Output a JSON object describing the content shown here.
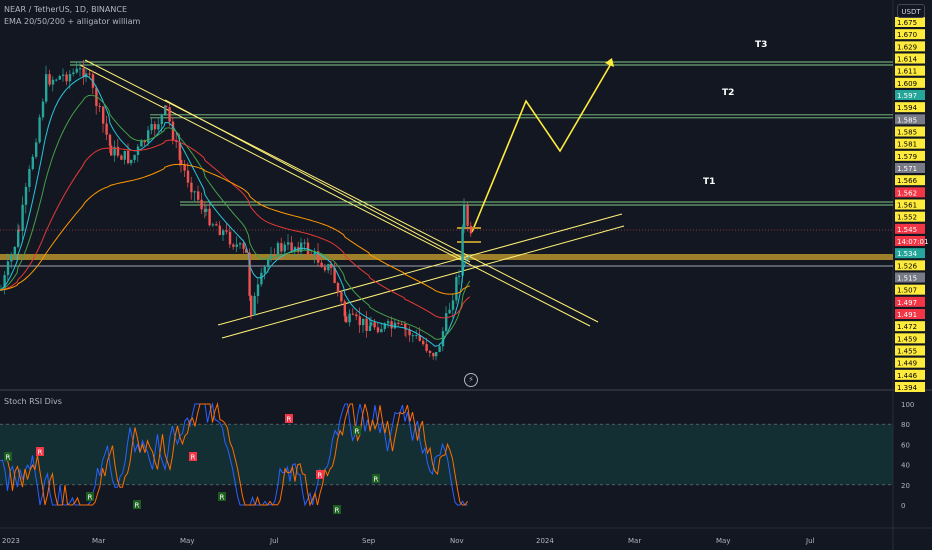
{
  "header": {
    "symbol_line": "NEAR / TetherUS, 1D, BINANCE",
    "indicator_line": "EMA 20/50/200 + alligator william",
    "currency": "USDT"
  },
  "price_axis": {
    "ticks": [
      {
        "label": "1.675",
        "bg": "#ffeb3b",
        "fg": "#000000"
      },
      {
        "label": "1.670",
        "bg": "#ffeb3b",
        "fg": "#000000"
      },
      {
        "label": "1.629",
        "bg": "#ffeb3b",
        "fg": "#000000"
      },
      {
        "label": "1.614",
        "bg": "#ffeb3b",
        "fg": "#000000"
      },
      {
        "label": "1.611",
        "bg": "#ffeb3b",
        "fg": "#000000"
      },
      {
        "label": "1.609",
        "bg": "#ffeb3b",
        "fg": "#000000"
      },
      {
        "label": "1.597",
        "bg": "#26a69a",
        "fg": "#ffffff"
      },
      {
        "label": "1.594",
        "bg": "#ffeb3b",
        "fg": "#000000"
      },
      {
        "label": "1.585",
        "bg": "#787b86",
        "fg": "#ffffff"
      },
      {
        "label": "1.585",
        "bg": "#ffeb3b",
        "fg": "#000000"
      },
      {
        "label": "1.581",
        "bg": "#ffeb3b",
        "fg": "#000000"
      },
      {
        "label": "1.579",
        "bg": "#ffeb3b",
        "fg": "#000000"
      },
      {
        "label": "1.571",
        "bg": "#787b86",
        "fg": "#ffffff"
      },
      {
        "label": "1.566",
        "bg": "#ffeb3b",
        "fg": "#000000"
      },
      {
        "label": "1.562",
        "bg": "#f23645",
        "fg": "#ffffff"
      },
      {
        "label": "1.561",
        "bg": "#ffeb3b",
        "fg": "#000000"
      },
      {
        "label": "1.552",
        "bg": "#ffeb3b",
        "fg": "#000000"
      },
      {
        "label": "1.545",
        "bg": "#f23645",
        "fg": "#ffffff"
      },
      {
        "label": "14:07:01",
        "bg": "#f23645",
        "fg": "#ffffff"
      },
      {
        "label": "1.534",
        "bg": "#26a69a",
        "fg": "#ffffff"
      },
      {
        "label": "1.526",
        "bg": "#ffeb3b",
        "fg": "#000000"
      },
      {
        "label": "1.515",
        "bg": "#787b86",
        "fg": "#ffffff"
      },
      {
        "label": "1.507",
        "bg": "#ffeb3b",
        "fg": "#000000"
      },
      {
        "label": "1.497",
        "bg": "#f23645",
        "fg": "#ffffff"
      },
      {
        "label": "1.491",
        "bg": "#f23645",
        "fg": "#ffffff"
      },
      {
        "label": "1.472",
        "bg": "#ffeb3b",
        "fg": "#000000"
      },
      {
        "label": "1.459",
        "bg": "#ffeb3b",
        "fg": "#000000"
      },
      {
        "label": "1.455",
        "bg": "#ffeb3b",
        "fg": "#000000"
      },
      {
        "label": "1.449",
        "bg": "#ffeb3b",
        "fg": "#000000"
      },
      {
        "label": "1.446",
        "bg": "#ffeb3b",
        "fg": "#000000"
      },
      {
        "label": "1.394",
        "bg": "#ffeb3b",
        "fg": "#000000"
      }
    ]
  },
  "targets": [
    {
      "label": "T3",
      "price": 1.614
    },
    {
      "label": "T2",
      "price": 1.594
    },
    {
      "label": "T1",
      "price": 1.561
    }
  ],
  "indicator_panel": {
    "title": "Stoch RSI Divs",
    "ticks": [
      "100",
      "80",
      "60",
      "40",
      "20",
      "0"
    ],
    "signals": [
      "R",
      "R",
      "R",
      "R",
      "R",
      "R",
      "R",
      "R",
      "R",
      "R",
      "R"
    ]
  },
  "time_axis": {
    "labels": [
      "2023",
      "Mar",
      "May",
      "Jul",
      "Sep",
      "Nov",
      "2024",
      "Mar",
      "May",
      "Jul"
    ]
  },
  "colors": {
    "background": "#131722",
    "bull": "#26a69a",
    "bear": "#ef5350",
    "drawing": "#fff176",
    "level": "#81c784",
    "zone": "#b8932c"
  }
}
